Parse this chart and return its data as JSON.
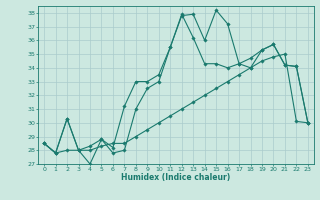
{
  "title": "",
  "xlabel": "Humidex (Indice chaleur)",
  "background_color": "#cce8e0",
  "grid_color": "#aacccc",
  "line_color": "#1a7a6e",
  "ylim": [
    27,
    38.5
  ],
  "xlim": [
    -0.5,
    23.5
  ],
  "yticks": [
    27,
    28,
    29,
    30,
    31,
    32,
    33,
    34,
    35,
    36,
    37,
    38
  ],
  "xticks": [
    0,
    1,
    2,
    3,
    4,
    5,
    6,
    7,
    8,
    9,
    10,
    11,
    12,
    13,
    14,
    15,
    16,
    17,
    18,
    19,
    20,
    21,
    22,
    23
  ],
  "series1": [
    28.5,
    27.8,
    30.3,
    28.0,
    27.0,
    28.8,
    27.8,
    28.0,
    31.0,
    32.5,
    33.0,
    35.5,
    37.8,
    37.9,
    36.0,
    38.2,
    37.2,
    34.3,
    34.0,
    35.3,
    35.7,
    34.2,
    34.1,
    30.0
  ],
  "series2": [
    28.5,
    27.8,
    30.3,
    28.0,
    28.3,
    28.8,
    28.2,
    31.2,
    33.0,
    33.0,
    33.5,
    35.5,
    37.9,
    36.2,
    34.3,
    34.3,
    34.0,
    34.3,
    34.7,
    35.3,
    35.7,
    34.2,
    34.1,
    30.0
  ],
  "series3": [
    28.5,
    27.8,
    28.0,
    28.0,
    28.0,
    28.3,
    28.5,
    28.5,
    29.0,
    29.5,
    30.0,
    30.5,
    31.0,
    31.5,
    32.0,
    32.5,
    33.0,
    33.5,
    34.0,
    34.5,
    34.8,
    35.0,
    30.1,
    30.0
  ]
}
